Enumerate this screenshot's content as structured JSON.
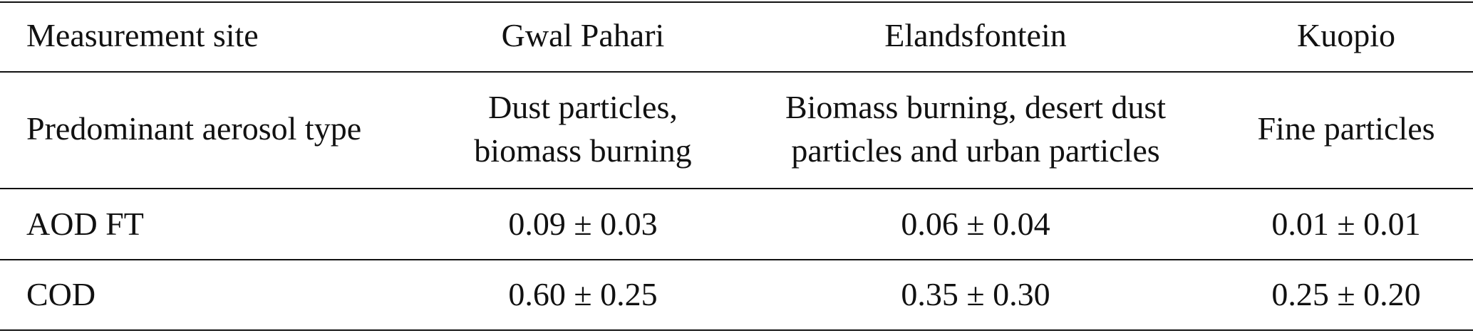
{
  "table": {
    "header": [
      "Measurement site",
      "Gwal Pahari",
      "Elandsfontein",
      "Kuopio"
    ],
    "rows": [
      [
        "Predominant aerosol type",
        [
          "Dust particles,",
          "biomass burning"
        ],
        [
          "Biomass burning, desert dust",
          "particles and urban particles"
        ],
        "Fine particles"
      ],
      [
        "AOD FT",
        "0.09 ± 0.03",
        "0.06 ± 0.04",
        "0.01 ± 0.01"
      ],
      [
        "COD",
        "0.60 ± 0.25",
        "0.35 ± 0.30",
        "0.25 ± 0.20"
      ]
    ]
  }
}
